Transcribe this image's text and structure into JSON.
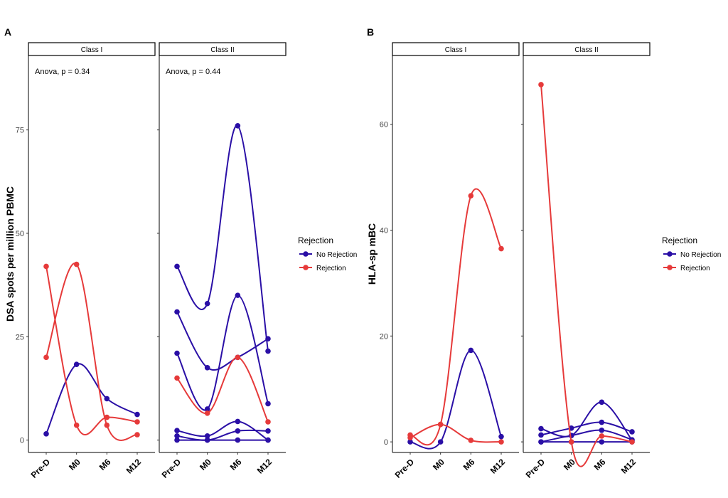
{
  "colors": {
    "no_rejection": "#2a0fa6",
    "rejection": "#e63a3a"
  },
  "legend": {
    "title": "Rejection",
    "entries": [
      "No Rejection",
      "Rejection"
    ],
    "placement": "right"
  },
  "chart_data": [
    {
      "type": "line",
      "panel_label": "A",
      "ylabel": "DSA spots per million PBMC",
      "x": [
        "Pre-D",
        "M0",
        "M6",
        "M12"
      ],
      "yticks": [
        0,
        25,
        50,
        75
      ],
      "ylim": [
        -3,
        93
      ],
      "grid": false,
      "facets": [
        {
          "strip": "Class I",
          "annotation": "Anova, p = 0.34",
          "series": [
            {
              "group": "No Rejection",
              "points": [
                [
                  0,
                  1.5
                ],
                [
                  1,
                  18.3
                ],
                [
                  2,
                  10
                ],
                [
                  3,
                  6.2
                ]
              ]
            },
            {
              "group": "Rejection",
              "points": [
                [
                  0,
                  42
                ],
                [
                  1,
                  3.6
                ],
                [
                  2,
                  5.5
                ],
                [
                  3,
                  4.4
                ]
              ]
            },
            {
              "group": "Rejection",
              "points": [
                [
                  0,
                  20
                ],
                [
                  1,
                  42.5
                ],
                [
                  2,
                  3.6
                ],
                [
                  3,
                  1.3
                ]
              ]
            }
          ]
        },
        {
          "strip": "Class II",
          "annotation": "Anova, p = 0.44",
          "series": [
            {
              "group": "No Rejection",
              "points": [
                [
                  0,
                  42
                ],
                [
                  1,
                  33
                ],
                [
                  2,
                  76
                ],
                [
                  3,
                  21.5
                ]
              ]
            },
            {
              "group": "No Rejection",
              "points": [
                [
                  0,
                  31
                ],
                [
                  1,
                  17.5
                ],
                [
                  2,
                  20
                ],
                [
                  3,
                  24.5
                ]
              ]
            },
            {
              "group": "No Rejection",
              "points": [
                [
                  0,
                  21
                ],
                [
                  1,
                  7.5
                ],
                [
                  2,
                  35
                ],
                [
                  3,
                  8.8
                ]
              ]
            },
            {
              "group": "No Rejection",
              "points": [
                [
                  0,
                  2.3
                ],
                [
                  1,
                  1
                ],
                [
                  2,
                  4.5
                ],
                [
                  3,
                  0
                ]
              ]
            },
            {
              "group": "No Rejection",
              "points": [
                [
                  0,
                  1
                ],
                [
                  1,
                  0
                ],
                [
                  2,
                  2.2
                ],
                [
                  3,
                  2.2
                ]
              ]
            },
            {
              "group": "No Rejection",
              "points": [
                [
                  0,
                  0
                ],
                [
                  1,
                  0
                ],
                [
                  2,
                  0
                ],
                [
                  3,
                  0
                ]
              ]
            },
            {
              "group": "Rejection",
              "points": [
                [
                  0,
                  15
                ],
                [
                  1,
                  6.5
                ],
                [
                  2,
                  20
                ],
                [
                  3,
                  4.4
                ]
              ]
            }
          ]
        }
      ]
    },
    {
      "type": "line",
      "panel_label": "B",
      "ylabel": "HLA-sp mBC",
      "x": [
        "Pre-D",
        "M0",
        "M6",
        "M12"
      ],
      "yticks": [
        0,
        20,
        40,
        60
      ],
      "ylim": [
        -2,
        73
      ],
      "grid": false,
      "facets": [
        {
          "strip": "Class I",
          "annotation": "",
          "series": [
            {
              "group": "No Rejection",
              "points": [
                [
                  0,
                  0
                ],
                [
                  1,
                  0
                ],
                [
                  2,
                  17.3
                ],
                [
                  3,
                  1
                ]
              ]
            },
            {
              "group": "Rejection",
              "points": [
                [
                  0,
                  1.3
                ],
                [
                  1,
                  3.3
                ],
                [
                  2,
                  46.5
                ],
                [
                  3,
                  36.5
                ]
              ]
            },
            {
              "group": "Rejection",
              "points": [
                [
                  0,
                  0.8
                ],
                [
                  1,
                  3.3
                ],
                [
                  2,
                  0.3
                ],
                [
                  3,
                  0
                ]
              ]
            }
          ]
        },
        {
          "strip": "Class II",
          "annotation": "",
          "series": [
            {
              "group": "No Rejection",
              "points": [
                [
                  0,
                  2.5
                ],
                [
                  1,
                  1.2
                ],
                [
                  2,
                  7.5
                ],
                [
                  3,
                  0.3
                ]
              ]
            },
            {
              "group": "No Rejection",
              "points": [
                [
                  0,
                  1.3
                ],
                [
                  1,
                  2.6
                ],
                [
                  2,
                  3.7
                ],
                [
                  3,
                  1.9
                ]
              ]
            },
            {
              "group": "No Rejection",
              "points": [
                [
                  0,
                  0
                ],
                [
                  1,
                  1.2
                ],
                [
                  2,
                  2.2
                ],
                [
                  3,
                  0.4
                ]
              ]
            },
            {
              "group": "No Rejection",
              "points": [
                [
                  0,
                  0
                ],
                [
                  1,
                  0
                ],
                [
                  2,
                  0
                ],
                [
                  3,
                  0
                ]
              ]
            },
            {
              "group": "Rejection",
              "points": [
                [
                  0,
                  67.5
                ],
                [
                  1,
                  0
                ],
                [
                  2,
                  1.1
                ],
                [
                  3,
                  0
                ]
              ]
            }
          ]
        }
      ]
    }
  ]
}
